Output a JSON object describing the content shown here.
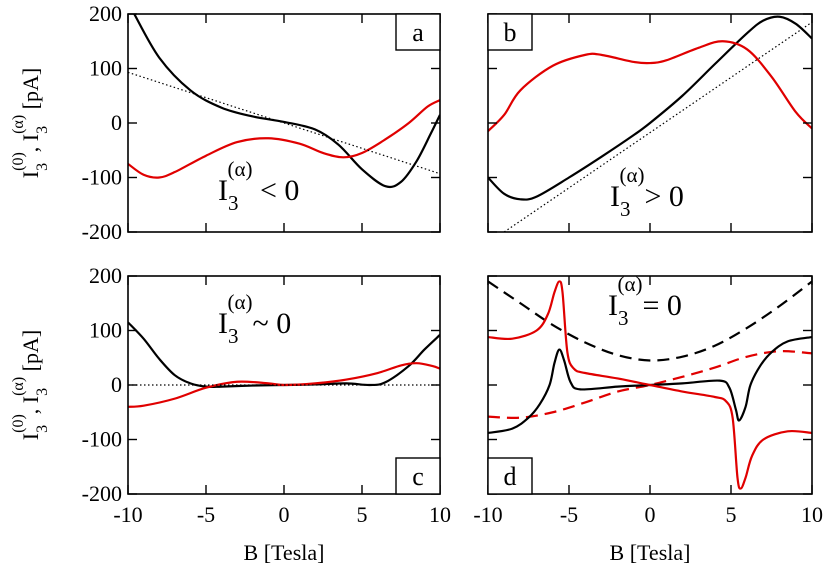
{
  "chart_data": {
    "type": "line",
    "title": "",
    "xlabel": "B [Tesla]",
    "ylabel": {
      "prefix": "I",
      "sub1": "3",
      "sup1": "(0)",
      "sep": ", I",
      "sub2": "3",
      "sup2": "(α)",
      "unit": " [pA]"
    },
    "xlim": [
      -10,
      10
    ],
    "ylim": [
      -200,
      200
    ],
    "x_ticks": [
      -10,
      -5,
      0,
      5,
      10
    ],
    "y_ticks": [
      -200,
      -100,
      0,
      100,
      200
    ],
    "grid": false,
    "legend": "none",
    "colors": {
      "black": "#000000",
      "red": "#e00000"
    },
    "panels": [
      {
        "id": "a",
        "letter": "a",
        "annotation": {
          "main": "I",
          "sub": "3",
          "sup": "(α)",
          "rel": " < 0"
        },
        "series": [
          {
            "color": "#000000",
            "dash": "solid",
            "points": [
              [
                -9.6,
                200
              ],
              [
                -8,
                120
              ],
              [
                -6,
                60
              ],
              [
                -4,
                28
              ],
              [
                -2,
                12
              ],
              [
                0,
                2
              ],
              [
                2,
                -12
              ],
              [
                3.5,
                -40
              ],
              [
                5,
                -85
              ],
              [
                6.5,
                -116
              ],
              [
                7.5,
                -108
              ],
              [
                8.5,
                -70
              ],
              [
                9.4,
                -20
              ],
              [
                10,
                15
              ]
            ]
          },
          {
            "color": "#e00000",
            "dash": "solid",
            "points": [
              [
                -10,
                -75
              ],
              [
                -9,
                -95
              ],
              [
                -8,
                -100
              ],
              [
                -7,
                -90
              ],
              [
                -5,
                -60
              ],
              [
                -3,
                -35
              ],
              [
                -1,
                -28
              ],
              [
                1,
                -38
              ],
              [
                2.5,
                -55
              ],
              [
                3.8,
                -63
              ],
              [
                5,
                -55
              ],
              [
                6.5,
                -30
              ],
              [
                8,
                0
              ],
              [
                9.2,
                30
              ],
              [
                10,
                42
              ]
            ]
          },
          {
            "color": "#000000",
            "dash": "dotted",
            "points": [
              [
                -10,
                93
              ],
              [
                10,
                -93
              ]
            ]
          }
        ]
      },
      {
        "id": "b",
        "letter": "b",
        "annotation": {
          "main": "I",
          "sub": "3",
          "sup": "(α)",
          "rel": "> 0"
        },
        "series": [
          {
            "color": "#000000",
            "dash": "solid",
            "points": [
              [
                -10,
                -100
              ],
              [
                -9,
                -130
              ],
              [
                -8,
                -140
              ],
              [
                -7,
                -135
              ],
              [
                -5,
                -100
              ],
              [
                -3,
                -62
              ],
              [
                -1,
                -22
              ],
              [
                0,
                0
              ],
              [
                2,
                50
              ],
              [
                4,
                108
              ],
              [
                6,
                165
              ],
              [
                7,
                188
              ],
              [
                8,
                195
              ],
              [
                9,
                182
              ],
              [
                10,
                155
              ]
            ]
          },
          {
            "color": "#e00000",
            "dash": "solid",
            "points": [
              [
                -10,
                -15
              ],
              [
                -9,
                15
              ],
              [
                -8,
                60
              ],
              [
                -6,
                105
              ],
              [
                -4,
                125
              ],
              [
                -3,
                125
              ],
              [
                -1,
                112
              ],
              [
                0,
                110
              ],
              [
                1,
                115
              ],
              [
                3,
                138
              ],
              [
                4.5,
                150
              ],
              [
                6,
                135
              ],
              [
                7.5,
                85
              ],
              [
                9,
                20
              ],
              [
                10,
                -10
              ]
            ]
          },
          {
            "color": "#000000",
            "dash": "dotted",
            "points": [
              [
                -9,
                -200
              ],
              [
                10,
                185
              ]
            ]
          }
        ]
      },
      {
        "id": "c",
        "letter": "c",
        "annotation": {
          "main": "I",
          "sub": "3",
          "sup": "(α)",
          "rel": "~ 0"
        },
        "series": [
          {
            "color": "#000000",
            "dash": "solid",
            "points": [
              [
                -10,
                115
              ],
              [
                -9,
                85
              ],
              [
                -8,
                48
              ],
              [
                -7,
                18
              ],
              [
                -6,
                3
              ],
              [
                -5,
                -3
              ],
              [
                -4,
                -3
              ],
              [
                -2,
                -1
              ],
              [
                0,
                0
              ],
              [
                2,
                1
              ],
              [
                4,
                3
              ],
              [
                5.5,
                0
              ],
              [
                6.5,
                5
              ],
              [
                8,
                35
              ],
              [
                9,
                65
              ],
              [
                10,
                92
              ]
            ]
          },
          {
            "color": "#e00000",
            "dash": "solid",
            "points": [
              [
                -10,
                -40
              ],
              [
                -9,
                -38
              ],
              [
                -7,
                -25
              ],
              [
                -5,
                -5
              ],
              [
                -3,
                6
              ],
              [
                -1,
                3
              ],
              [
                0,
                0
              ],
              [
                2,
                3
              ],
              [
                4,
                10
              ],
              [
                6,
                22
              ],
              [
                7.5,
                36
              ],
              [
                8.5,
                40
              ],
              [
                9.5,
                35
              ],
              [
                10,
                30
              ]
            ]
          },
          {
            "color": "#000000",
            "dash": "dotted",
            "points": [
              [
                -10,
                0
              ],
              [
                10,
                0
              ]
            ]
          }
        ]
      },
      {
        "id": "d",
        "letter": "d",
        "annotation": {
          "main": "I",
          "sub": "3",
          "sup": "(α)",
          "rel": "= 0"
        },
        "series": [
          {
            "color": "#000000",
            "dash": "dashed",
            "points": [
              [
                -10,
                190
              ],
              [
                -8,
                150
              ],
              [
                -6,
                110
              ],
              [
                -4,
                78
              ],
              [
                -2,
                55
              ],
              [
                0,
                45
              ],
              [
                2,
                52
              ],
              [
                4,
                72
              ],
              [
                6,
                105
              ],
              [
                8,
                145
              ],
              [
                10,
                190
              ]
            ]
          },
          {
            "color": "#e00000",
            "dash": "dashed",
            "points": [
              [
                -10,
                -58
              ],
              [
                -8,
                -60
              ],
              [
                -6,
                -50
              ],
              [
                -4,
                -32
              ],
              [
                -2,
                -12
              ],
              [
                0,
                0
              ],
              [
                2,
                15
              ],
              [
                4,
                32
              ],
              [
                6,
                52
              ],
              [
                8,
                62
              ],
              [
                10,
                58
              ]
            ]
          },
          {
            "color": "#000000",
            "dash": "solid",
            "points": [
              [
                -10,
                -88
              ],
              [
                -8.5,
                -80
              ],
              [
                -7.5,
                -60
              ],
              [
                -6.8,
                -35
              ],
              [
                -6.2,
                0
              ],
              [
                -5.9,
                40
              ],
              [
                -5.6,
                65
              ],
              [
                -5.3,
                45
              ],
              [
                -4.9,
                5
              ],
              [
                -4.3,
                -8
              ],
              [
                -2,
                -3
              ],
              [
                0,
                0
              ],
              [
                2,
                3
              ],
              [
                4.3,
                8
              ],
              [
                4.9,
                -5
              ],
              [
                5.3,
                -45
              ],
              [
                5.5,
                -65
              ],
              [
                5.9,
                -40
              ],
              [
                6.2,
                0
              ],
              [
                6.8,
                35
              ],
              [
                7.5,
                60
              ],
              [
                8.5,
                80
              ],
              [
                10,
                88
              ]
            ]
          },
          {
            "color": "#e00000",
            "dash": "solid",
            "points": [
              [
                -10,
                88
              ],
              [
                -8.5,
                85
              ],
              [
                -7,
                100
              ],
              [
                -6.3,
                130
              ],
              [
                -5.9,
                170
              ],
              [
                -5.6,
                190
              ],
              [
                -5.4,
                170
              ],
              [
                -5.1,
                60
              ],
              [
                -4.7,
                30
              ],
              [
                -4,
                22
              ],
              [
                -2,
                12
              ],
              [
                0,
                0
              ],
              [
                2,
                -12
              ],
              [
                4,
                -22
              ],
              [
                4.7,
                -30
              ],
              [
                5.1,
                -60
              ],
              [
                5.4,
                -170
              ],
              [
                5.6,
                -190
              ],
              [
                5.9,
                -170
              ],
              [
                6.3,
                -130
              ],
              [
                7,
                -100
              ],
              [
                8.5,
                -85
              ],
              [
                10,
                -88
              ]
            ]
          }
        ]
      }
    ]
  }
}
